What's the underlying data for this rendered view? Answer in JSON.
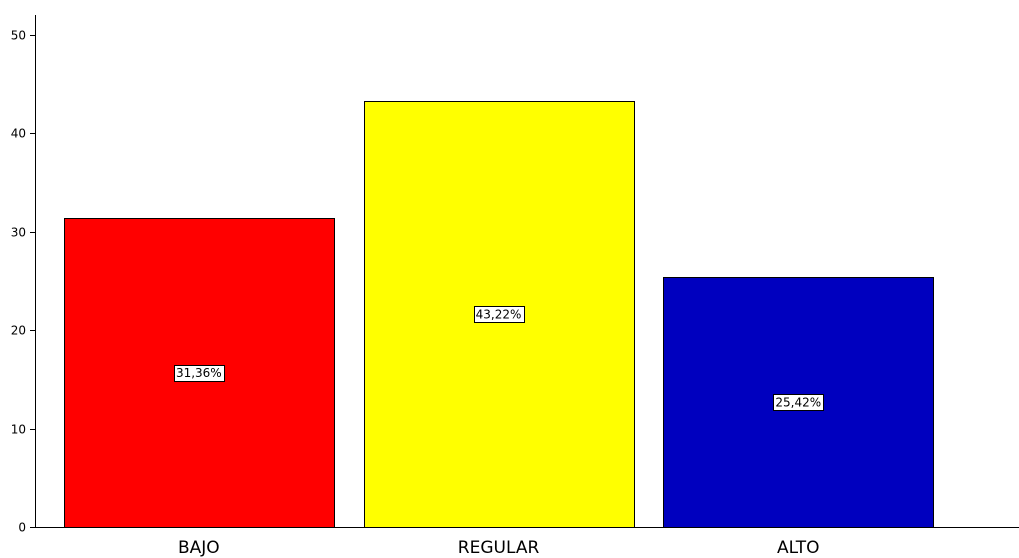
{
  "chart_data": {
    "type": "bar",
    "categories": [
      "BAJO",
      "REGULAR",
      "ALTO"
    ],
    "values": [
      31.36,
      43.22,
      25.42
    ],
    "data_labels": [
      "31,36%",
      "43,22%",
      "25,42%"
    ],
    "colors": [
      "#ff0000",
      "#ffff00",
      "#0000bf"
    ],
    "ylim": [
      0,
      52
    ],
    "yticks": [
      0,
      10,
      20,
      30,
      40,
      50
    ],
    "grid": false,
    "title": "",
    "xlabel": "",
    "ylabel": ""
  }
}
